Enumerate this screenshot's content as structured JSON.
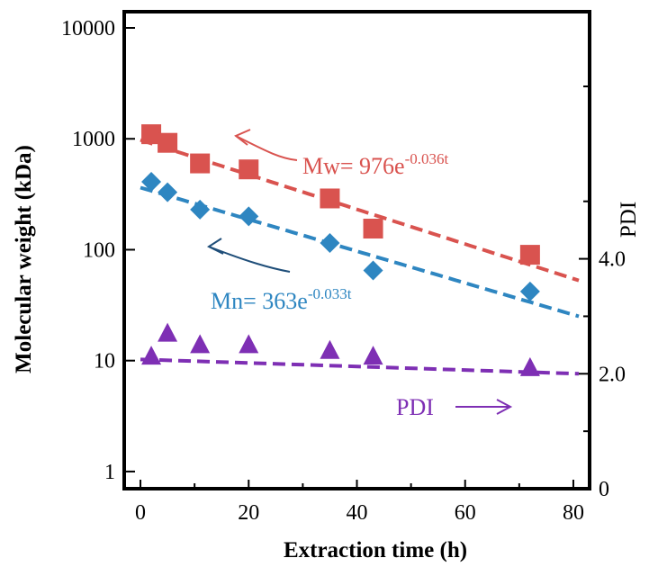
{
  "chart_data": {
    "type": "scatter",
    "xlabel": "Extraction  time  (h)",
    "ylabel": "Molecular  weight  (kDa)",
    "y2label": "PDI",
    "xlim": [
      -3,
      83
    ],
    "ylim": [
      0.7,
      14000
    ],
    "yscale": "log",
    "y2lim": [
      0,
      8.3
    ],
    "grid": false,
    "x_ticks": [
      0,
      20,
      40,
      60,
      80
    ],
    "x_tick_labels": [
      "0",
      "20",
      "40",
      "60",
      "80"
    ],
    "y_ticks": [
      1,
      10,
      100,
      1000,
      10000
    ],
    "y_tick_labels": [
      "1",
      "10",
      "100",
      "1000",
      "10000"
    ],
    "y2_ticks": [
      0,
      2.0,
      4.0
    ],
    "y2_tick_labels": [
      "0",
      "2.0",
      "4.0"
    ],
    "colors": {
      "mw": "#d9534f",
      "mn": "#2e86c1",
      "pdi": "#7e2fb4"
    },
    "series": [
      {
        "name": "Mw",
        "axis": "left",
        "marker": "square",
        "x": [
          2,
          5,
          11,
          20,
          35,
          43,
          72
        ],
        "y": [
          1100,
          920,
          600,
          530,
          290,
          155,
          90
        ]
      },
      {
        "name": "Mn",
        "axis": "left",
        "marker": "diamond",
        "x": [
          2,
          5,
          11,
          20,
          35,
          43,
          72
        ],
        "y": [
          410,
          330,
          230,
          200,
          115,
          65,
          42
        ]
      },
      {
        "name": "PDI",
        "axis": "right",
        "marker": "triangle",
        "x": [
          2,
          5,
          11,
          20,
          35,
          43,
          72
        ],
        "y": [
          2.3,
          2.7,
          2.5,
          2.5,
          2.4,
          2.3,
          2.1
        ]
      }
    ],
    "fits": [
      {
        "series": "Mw",
        "a": 976,
        "k": -0.036,
        "label_base": "Mw= 976e",
        "label_exp": "-0.036t"
      },
      {
        "series": "Mn",
        "a": 363,
        "k": -0.033,
        "label_base": "Mn= 363e",
        "label_exp": "-0.033t"
      },
      {
        "series": "PDI",
        "y_start": 2.25,
        "y_end": 2.0,
        "label": "PDI"
      }
    ]
  }
}
